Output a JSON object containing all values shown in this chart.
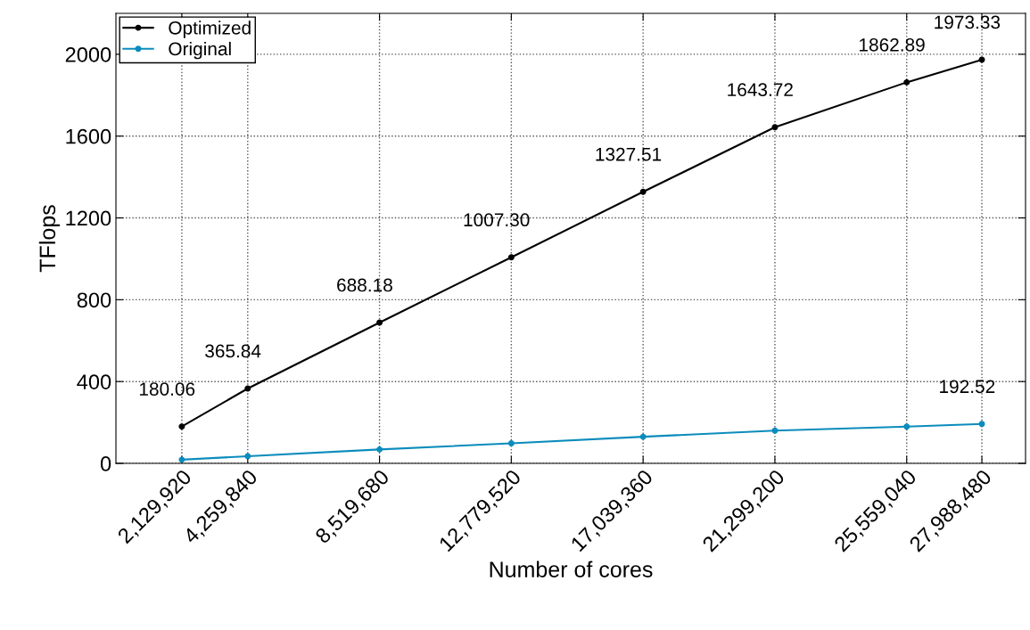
{
  "chart_data": {
    "type": "line",
    "xlabel": "Number of cores",
    "ylabel": "TFlops",
    "x": [
      2129920,
      4259840,
      8519680,
      12779520,
      17039360,
      21299200,
      25559040,
      27988480
    ],
    "series": [
      {
        "name": "Optimized",
        "color": "#000000",
        "values": [
          180.06,
          365.84,
          688.18,
          1007.3,
          1327.51,
          1643.72,
          1862.89,
          1973.33
        ],
        "value_labels": [
          "180.06",
          "365.84",
          "688.18",
          "1007.30",
          "1327.51",
          "1643.72",
          "1862.89",
          "1973.33"
        ]
      },
      {
        "name": "Original",
        "color": "#0c8cbc",
        "values": [
          18,
          35,
          68,
          98,
          130,
          160,
          180,
          192.52
        ],
        "value_labels": [
          null,
          null,
          null,
          null,
          null,
          null,
          null,
          "192.52"
        ]
      }
    ],
    "xlim": [
      0,
      29400000
    ],
    "xticks": [
      {
        "value": 2129920,
        "label": "2,129,920"
      },
      {
        "value": 4259840,
        "label": "4,259,840"
      },
      {
        "value": 8519680,
        "label": "8,519,680"
      },
      {
        "value": 12779520,
        "label": "12,779,520"
      },
      {
        "value": 17039360,
        "label": "17,039,360"
      },
      {
        "value": 21299200,
        "label": "21,299,200"
      },
      {
        "value": 25559040,
        "label": "25,559,040"
      },
      {
        "value": 27988480,
        "label": "27,988,480"
      }
    ],
    "ylim": [
      0,
      2200
    ],
    "yticks": [
      0,
      400,
      800,
      1200,
      1600,
      2000
    ],
    "grid": true,
    "legend": "top left",
    "marker": "circle",
    "line_style": "solid"
  }
}
